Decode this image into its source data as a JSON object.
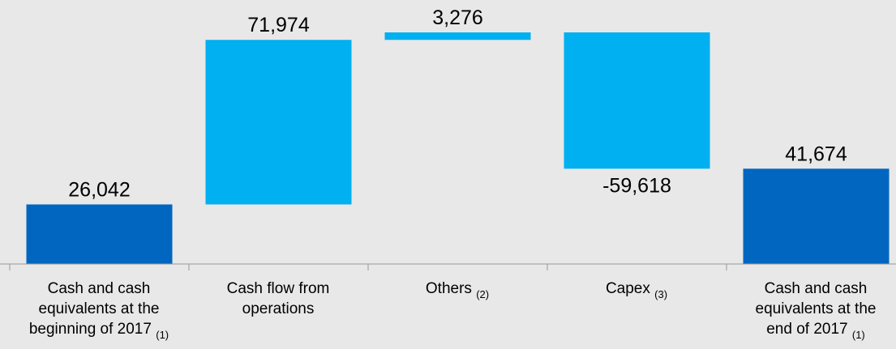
{
  "chart_data": {
    "type": "waterfall",
    "categories": [
      "Cash and cash equivalents at the beginning of 2017",
      "Cash flow from operations",
      "Others",
      "Capex",
      "Cash and cash equivalents at the end of 2017"
    ],
    "category_lines": [
      [
        "Cash and cash",
        "equivalents at the",
        "beginning of 2017"
      ],
      [
        "Cash flow from",
        "operations"
      ],
      [
        "Others"
      ],
      [
        "Capex"
      ],
      [
        "Cash and cash",
        "equivalents at the",
        "end of 2017"
      ]
    ],
    "footnotes": [
      "(1)",
      "",
      "(2)",
      "(3)",
      "(1)"
    ],
    "values": [
      26042,
      71974,
      3276,
      -59618,
      41674
    ],
    "value_labels": [
      "26,042",
      "71,974",
      "3,276",
      "-59,618",
      "41,674"
    ],
    "kinds": [
      "total",
      "delta",
      "delta",
      "delta",
      "total"
    ],
    "colors": {
      "total": "#0066c0",
      "delta": "#00b0f0"
    },
    "title": "",
    "xlabel": "",
    "ylabel": "",
    "ylim": [
      0,
      101292
    ],
    "grid": false,
    "legend": "none"
  }
}
